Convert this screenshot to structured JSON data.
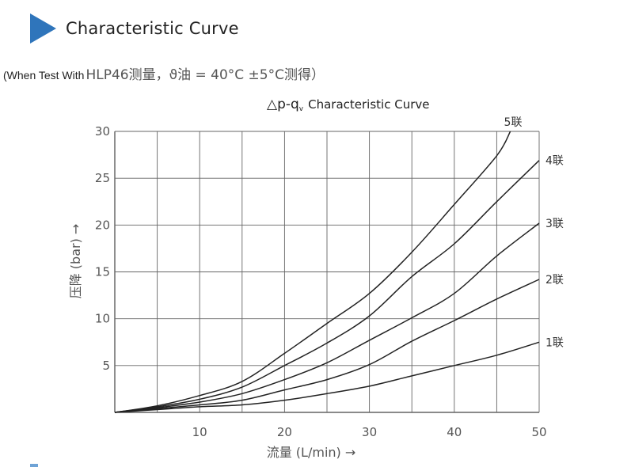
{
  "header": {
    "title": "Characteristic Curve",
    "accent_color": "#2f75bb",
    "icon": "play-triangle-icon"
  },
  "note": {
    "prefix": "(When Test With",
    "text": "HLP46测量，ϑ油 = 40°C ±5°C测得）"
  },
  "chart_data": {
    "type": "line",
    "title": "△p-q Characteristic Curve",
    "title_prefix": "△p-q",
    "title_subscript": "v",
    "title_suffix": "Characteristic Curve",
    "xlabel": "流量 (L/min) →",
    "ylabel": "压降 (bar) →",
    "xlim": [
      0,
      50
    ],
    "ylim": [
      0,
      30
    ],
    "x_ticks": [
      10,
      20,
      30,
      40,
      50
    ],
    "y_ticks": [
      5,
      10,
      15,
      20,
      25,
      30
    ],
    "x_grid": [
      5,
      10,
      15,
      20,
      25,
      30,
      35,
      40,
      45,
      50
    ],
    "y_grid": [
      5,
      10,
      15,
      20,
      25,
      30
    ],
    "grid": true,
    "line_color": "#222222",
    "grid_color": "#666666",
    "series": [
      {
        "name": "1联",
        "x": [
          0,
          5,
          10,
          15,
          20,
          25,
          30,
          35,
          40,
          45,
          50
        ],
        "y": [
          0,
          0.3,
          0.6,
          0.8,
          1.3,
          2.0,
          2.8,
          3.9,
          5.0,
          6.1,
          7.5
        ]
      },
      {
        "name": "2联",
        "x": [
          0,
          5,
          10,
          15,
          20,
          25,
          30,
          35,
          40,
          45,
          50
        ],
        "y": [
          0,
          0.4,
          0.8,
          1.3,
          2.4,
          3.5,
          5.1,
          7.6,
          9.8,
          12.1,
          14.2
        ]
      },
      {
        "name": "3联",
        "x": [
          0,
          5,
          10,
          15,
          20,
          25,
          30,
          35,
          40,
          45,
          50
        ],
        "y": [
          0,
          0.5,
          1.1,
          2.0,
          3.5,
          5.3,
          7.7,
          10.1,
          12.7,
          16.7,
          20.2
        ]
      },
      {
        "name": "4联",
        "x": [
          0,
          5,
          10,
          15,
          20,
          25,
          30,
          35,
          40,
          45,
          50
        ],
        "y": [
          0,
          0.6,
          1.4,
          2.7,
          5.0,
          7.4,
          10.3,
          14.5,
          18.0,
          22.5,
          26.9
        ]
      },
      {
        "name": "5联",
        "x": [
          0,
          5,
          10,
          15,
          20,
          25,
          30,
          35,
          40,
          45,
          46.6
        ],
        "y": [
          0,
          0.7,
          1.8,
          3.3,
          6.3,
          9.5,
          12.7,
          17.1,
          22.2,
          27.4,
          30
        ]
      }
    ]
  }
}
